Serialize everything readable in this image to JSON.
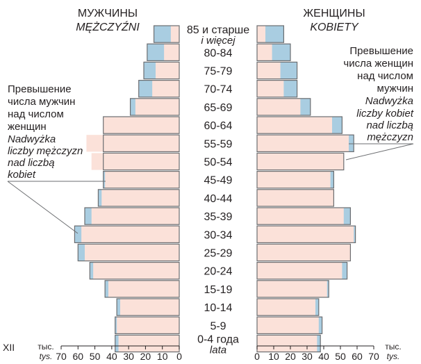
{
  "chart_data": {
    "type": "bar",
    "orientation": "horizontal",
    "subtype": "population-pyramid",
    "categories": [
      "0-4 года",
      "5-9",
      "10-14",
      "15-19",
      "20-24",
      "25-29",
      "30-34",
      "35-39",
      "40-44",
      "45-49",
      "50-54",
      "55-59",
      "60-64",
      "65-69",
      "70-74",
      "75-79",
      "80-84",
      "85 и старше"
    ],
    "category_secondary": {
      "0": "lata",
      "17": "i więcej"
    },
    "series": [
      {
        "name": "МУЖЧИНЫ",
        "name_secondary": "MĘŻCZYŹNI",
        "side": "left",
        "values": [
          38,
          38,
          37,
          44,
          53,
          60,
          62,
          56,
          48,
          45,
          45,
          45,
          45,
          29,
          24,
          21,
          19,
          15
        ]
      },
      {
        "name": "ЖЕНЩИНЫ",
        "name_secondary": "KOBIETY",
        "side": "right",
        "values": [
          38,
          39,
          37,
          43,
          54,
          56,
          59,
          56,
          46,
          46,
          52,
          58,
          51,
          32,
          24,
          24,
          20,
          16
        ]
      }
    ],
    "base_values": [
      36,
      37,
      35,
      42,
      51,
      56,
      58,
      52,
      46,
      44,
      52,
      55,
      45,
      26,
      16,
      14,
      9,
      5
    ],
    "excess_colors": {
      "base": "#fbe1d9",
      "excess": "#a9cde1",
      "outline": "#6b6d70"
    },
    "xlabel": "тыс.",
    "xlabel_secondary": "tys.",
    "xlim": [
      0,
      70
    ],
    "ticks": [
      0,
      10,
      20,
      30,
      40,
      50,
      60,
      70
    ],
    "side_label": "XII",
    "annotations": [
      {
        "lines": [
          "Превышение",
          "числа мужчин",
          "над числом",
          "женщин"
        ],
        "lines_secondary": [
          "Nadwyżka",
          "liczby mężczyzn",
          "nad liczbą",
          "kobiet"
        ]
      },
      {
        "lines": [
          "Превышение",
          "числа женщин",
          "над числом",
          "мужчин"
        ],
        "lines_secondary": [
          "Nadwyżka",
          "liczby kobiet",
          "nad liczbą",
          "mężczyzn"
        ]
      }
    ]
  }
}
